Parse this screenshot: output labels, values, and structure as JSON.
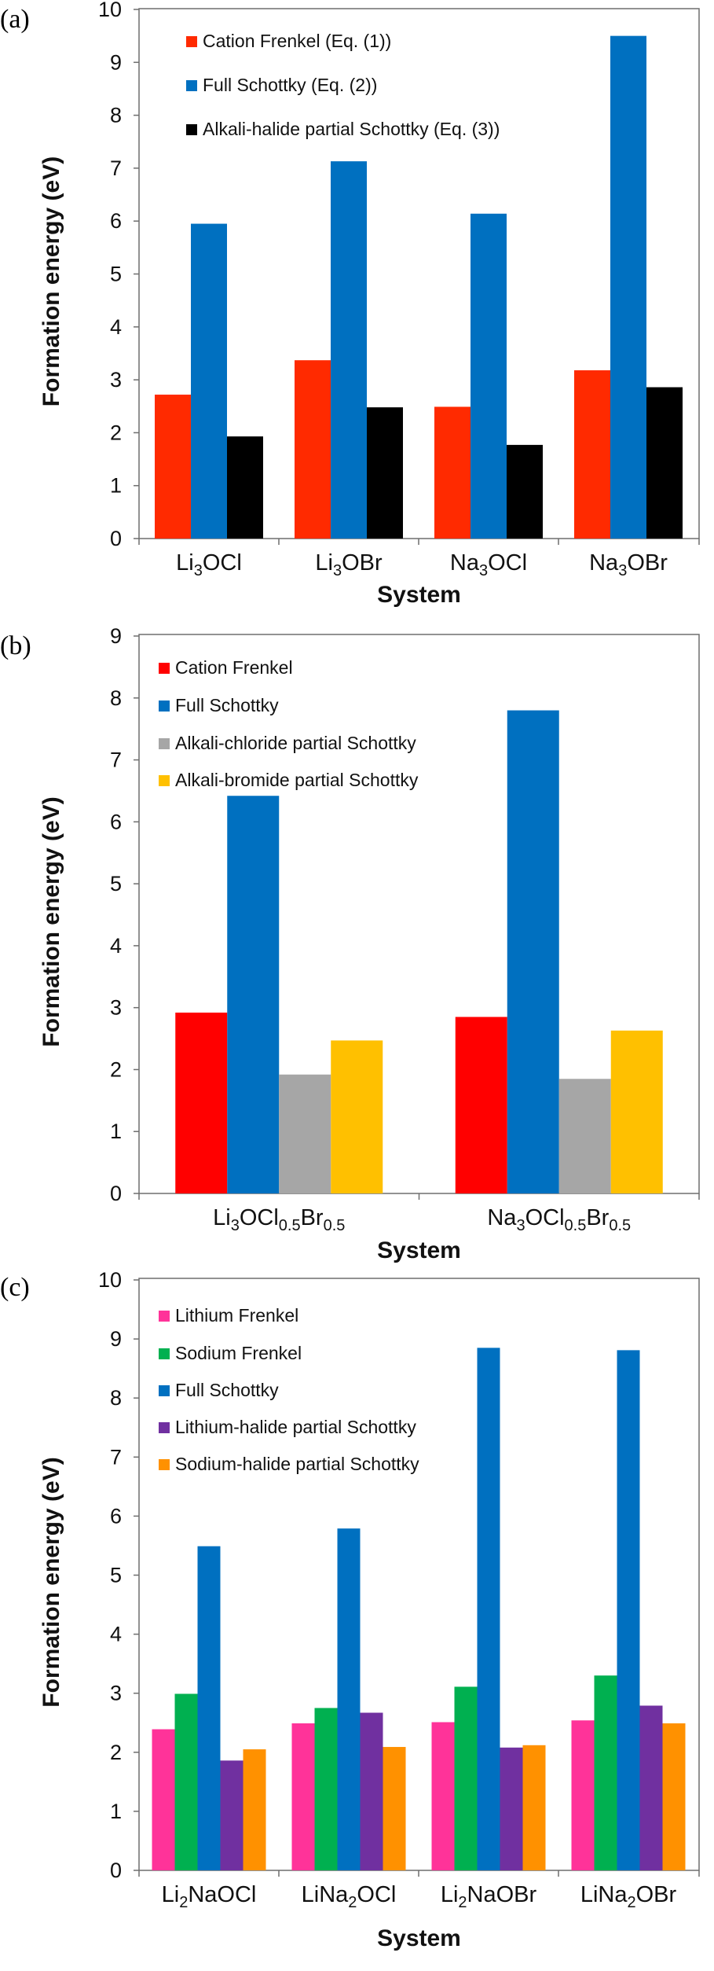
{
  "chart_data": [
    {
      "panel_label": "(a)",
      "type": "bar",
      "xlabel": "System",
      "ylabel": "Formation energy (eV)",
      "ylim": [
        0,
        10
      ],
      "yticks": [
        0,
        1,
        2,
        3,
        4,
        5,
        6,
        7,
        8,
        9,
        10
      ],
      "grid": false,
      "legend_position": "top-left",
      "categories": [
        {
          "main": "Li",
          "sub": "3",
          "rest": "OCl"
        },
        {
          "main": "Li",
          "sub": "3",
          "rest": "OBr"
        },
        {
          "main": "Na",
          "sub": "3",
          "rest": "OCl"
        },
        {
          "main": "Na",
          "sub": "3",
          "rest": "OBr"
        }
      ],
      "series": [
        {
          "name": "Cation Frenkel (Eq. (1))",
          "color": "#ff2a00",
          "values": [
            2.72,
            3.37,
            2.49,
            3.18
          ]
        },
        {
          "name": "Full Schottky (Eq. (2))",
          "color": "#0070c0",
          "values": [
            5.95,
            7.13,
            6.14,
            9.5
          ]
        },
        {
          "name": "Alkali-halide partial Schottky (Eq. (3))",
          "color": "#000000",
          "values": [
            1.93,
            2.48,
            1.77,
            2.86
          ]
        }
      ]
    },
    {
      "panel_label": "(b)",
      "type": "bar",
      "xlabel": "System",
      "ylabel": "Formation energy (eV)",
      "ylim": [
        0,
        9
      ],
      "yticks": [
        0,
        1,
        2,
        3,
        4,
        5,
        6,
        7,
        8,
        9
      ],
      "grid": false,
      "legend_position": "top-left",
      "categories": [
        {
          "main": "Li",
          "sub": "3",
          "rest": "OCl",
          "sub2": "0.5",
          "rest2": "Br",
          "sub3": "0.5"
        },
        {
          "main": "Na",
          "sub": "3",
          "rest": "OCl",
          "sub2": "0.5",
          "rest2": "Br",
          "sub3": "0.5"
        }
      ],
      "series": [
        {
          "name": "Cation Frenkel",
          "color": "#ff0000",
          "values": [
            2.92,
            2.85
          ]
        },
        {
          "name": "Full Schottky",
          "color": "#0070c0",
          "values": [
            6.42,
            7.8
          ]
        },
        {
          "name": "Alkali-chloride partial Schottky",
          "color": "#a6a6a6",
          "values": [
            1.92,
            1.85
          ]
        },
        {
          "name": "Alkali-bromide partial Schottky",
          "color": "#ffc000",
          "values": [
            2.47,
            2.63
          ]
        }
      ]
    },
    {
      "panel_label": "(c)",
      "type": "bar",
      "xlabel": "System",
      "ylabel": "Formation energy (eV)",
      "ylim": [
        0,
        10
      ],
      "yticks": [
        0,
        1,
        2,
        3,
        4,
        5,
        6,
        7,
        8,
        9,
        10
      ],
      "grid": false,
      "legend_position": "top-left",
      "categories": [
        {
          "main": "Li",
          "sub": "2",
          "rest": "NaOCl"
        },
        {
          "main": "LiNa",
          "sub": "2",
          "rest": "OCl"
        },
        {
          "main": "Li",
          "sub": "2",
          "rest": "NaOBr"
        },
        {
          "main": "LiNa",
          "sub": "2",
          "rest": "OBr"
        }
      ],
      "series": [
        {
          "name": "Lithium Frenkel",
          "color": "#ff3399",
          "values": [
            2.39,
            2.49,
            2.51,
            2.54
          ]
        },
        {
          "name": "Sodium Frenkel",
          "color": "#00b050",
          "values": [
            2.99,
            2.75,
            3.11,
            3.3
          ]
        },
        {
          "name": "Full Schottky",
          "color": "#0070c0",
          "values": [
            5.49,
            5.79,
            8.85,
            8.81
          ]
        },
        {
          "name": "Lithium-halide partial Schottky",
          "color": "#7030a0",
          "values": [
            1.86,
            2.67,
            2.08,
            2.79
          ]
        },
        {
          "name": "Sodium-halide partial Schottky",
          "color": "#ff9100",
          "values": [
            2.05,
            2.09,
            2.12,
            2.49
          ]
        }
      ]
    }
  ]
}
